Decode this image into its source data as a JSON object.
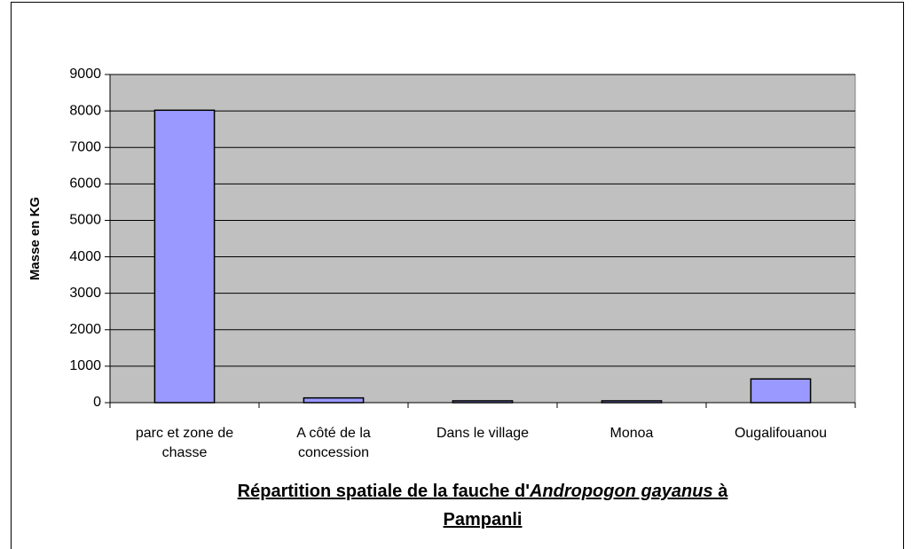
{
  "chart_data": {
    "type": "bar",
    "categories": [
      "parc et zone de chasse",
      "A côté de la concession",
      "Dans le village",
      "Monoa",
      "Ougalifouanou"
    ],
    "values": [
      8020,
      130,
      50,
      50,
      650
    ],
    "color": "#9999ff",
    "ylabel": "Masse en KG",
    "xlabel": [
      "Répartition spatiale de la fauche d'",
      "Andropogon gayanus",
      "à",
      "Pampanli"
    ],
    "ylim": [
      0,
      9000
    ],
    "yticks": [
      0,
      1000,
      2000,
      3000,
      4000,
      5000,
      6000,
      7000,
      8000,
      9000
    ],
    "grid": true,
    "plot_background": "#c0c0c0"
  }
}
